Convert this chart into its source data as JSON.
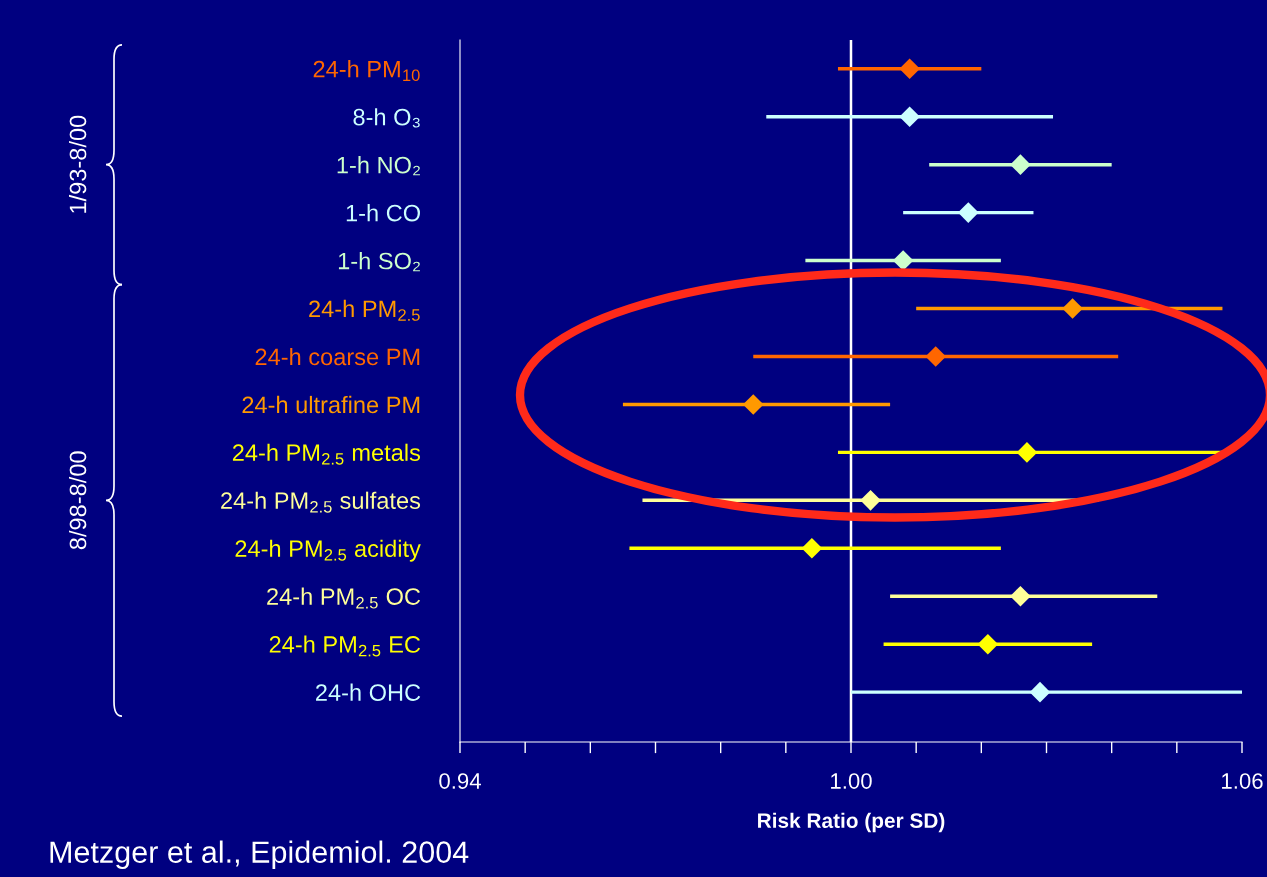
{
  "chart_data": {
    "type": "scatter",
    "orientation": "horizontal",
    "marker": "diamond",
    "grid": false,
    "categories": [
      "24-h PM$_{10}$",
      "8-h O₃",
      "1-h NO₂",
      "1-h CO",
      "1-h SO₂",
      "24-h PM$_{2.5}$",
      "24-h coarse PM",
      "24-h ultrafine PM",
      "24-h PM$_{2.5}$ metals",
      "24-h PM$_{2.5}$ sulfates",
      "24-h PM$_{2.5}$ acidity",
      "24-h PM$_{2.5}$ OC",
      "24-h PM$_{2.5}$ EC",
      "24-h OHC"
    ],
    "values": [
      1.009,
      1.009,
      1.026,
      1.018,
      1.008,
      1.034,
      1.013,
      0.985,
      1.027,
      1.003,
      0.994,
      1.026,
      1.021,
      1.029
    ],
    "errors": [
      [
        0.998,
        1.02
      ],
      [
        0.987,
        1.031
      ],
      [
        1.012,
        1.04
      ],
      [
        1.008,
        1.028
      ],
      [
        0.993,
        1.023
      ],
      [
        1.01,
        1.057
      ],
      [
        0.985,
        1.041
      ],
      [
        0.965,
        1.006
      ],
      [
        0.998,
        1.057
      ],
      [
        0.968,
        1.038
      ],
      [
        0.966,
        1.023
      ],
      [
        1.006,
        1.047
      ],
      [
        1.005,
        1.037
      ],
      [
        1.0,
        1.06
      ]
    ],
    "colors": [
      "#ff6600",
      "#ccffff",
      "#ccffcc",
      "#ccffff",
      "#ccffcc",
      "#ff9900",
      "#ff6600",
      "#ff9900",
      "#ffff00",
      "#ffff99",
      "#ffff00",
      "#ffff99",
      "#ffff00",
      "#ccffff"
    ],
    "xlim": [
      0.94,
      1.06
    ],
    "xticks": [
      0.94,
      {
        "value": 0.95,
        "label": null
      },
      {
        "value": 0.96,
        "label": null
      },
      {
        "value": 0.97,
        "label": null
      },
      {
        "value": 0.98,
        "label": null
      },
      {
        "value": 0.99,
        "label": null
      },
      {
        "value": 1.0,
        "label": "1.00"
      },
      {
        "value": 1.01,
        "label": null
      },
      {
        "value": 1.02,
        "label": null
      },
      {
        "value": 1.03,
        "label": null
      },
      {
        "value": 1.04,
        "label": null
      },
      {
        "value": 1.05,
        "label": null
      },
      {
        "value": 1.06,
        "label": "1.06"
      }
    ],
    "ref_lines": [
      {
        "axis": "x",
        "value": 1.0,
        "color": "#ffffff"
      }
    ],
    "xlabel": "Risk Ratio (per SD)",
    "annotations": [
      "1/93-8/00",
      "8/98-8/00",
      "Metzger et al., Epidemiol. 2004"
    ]
  }
}
